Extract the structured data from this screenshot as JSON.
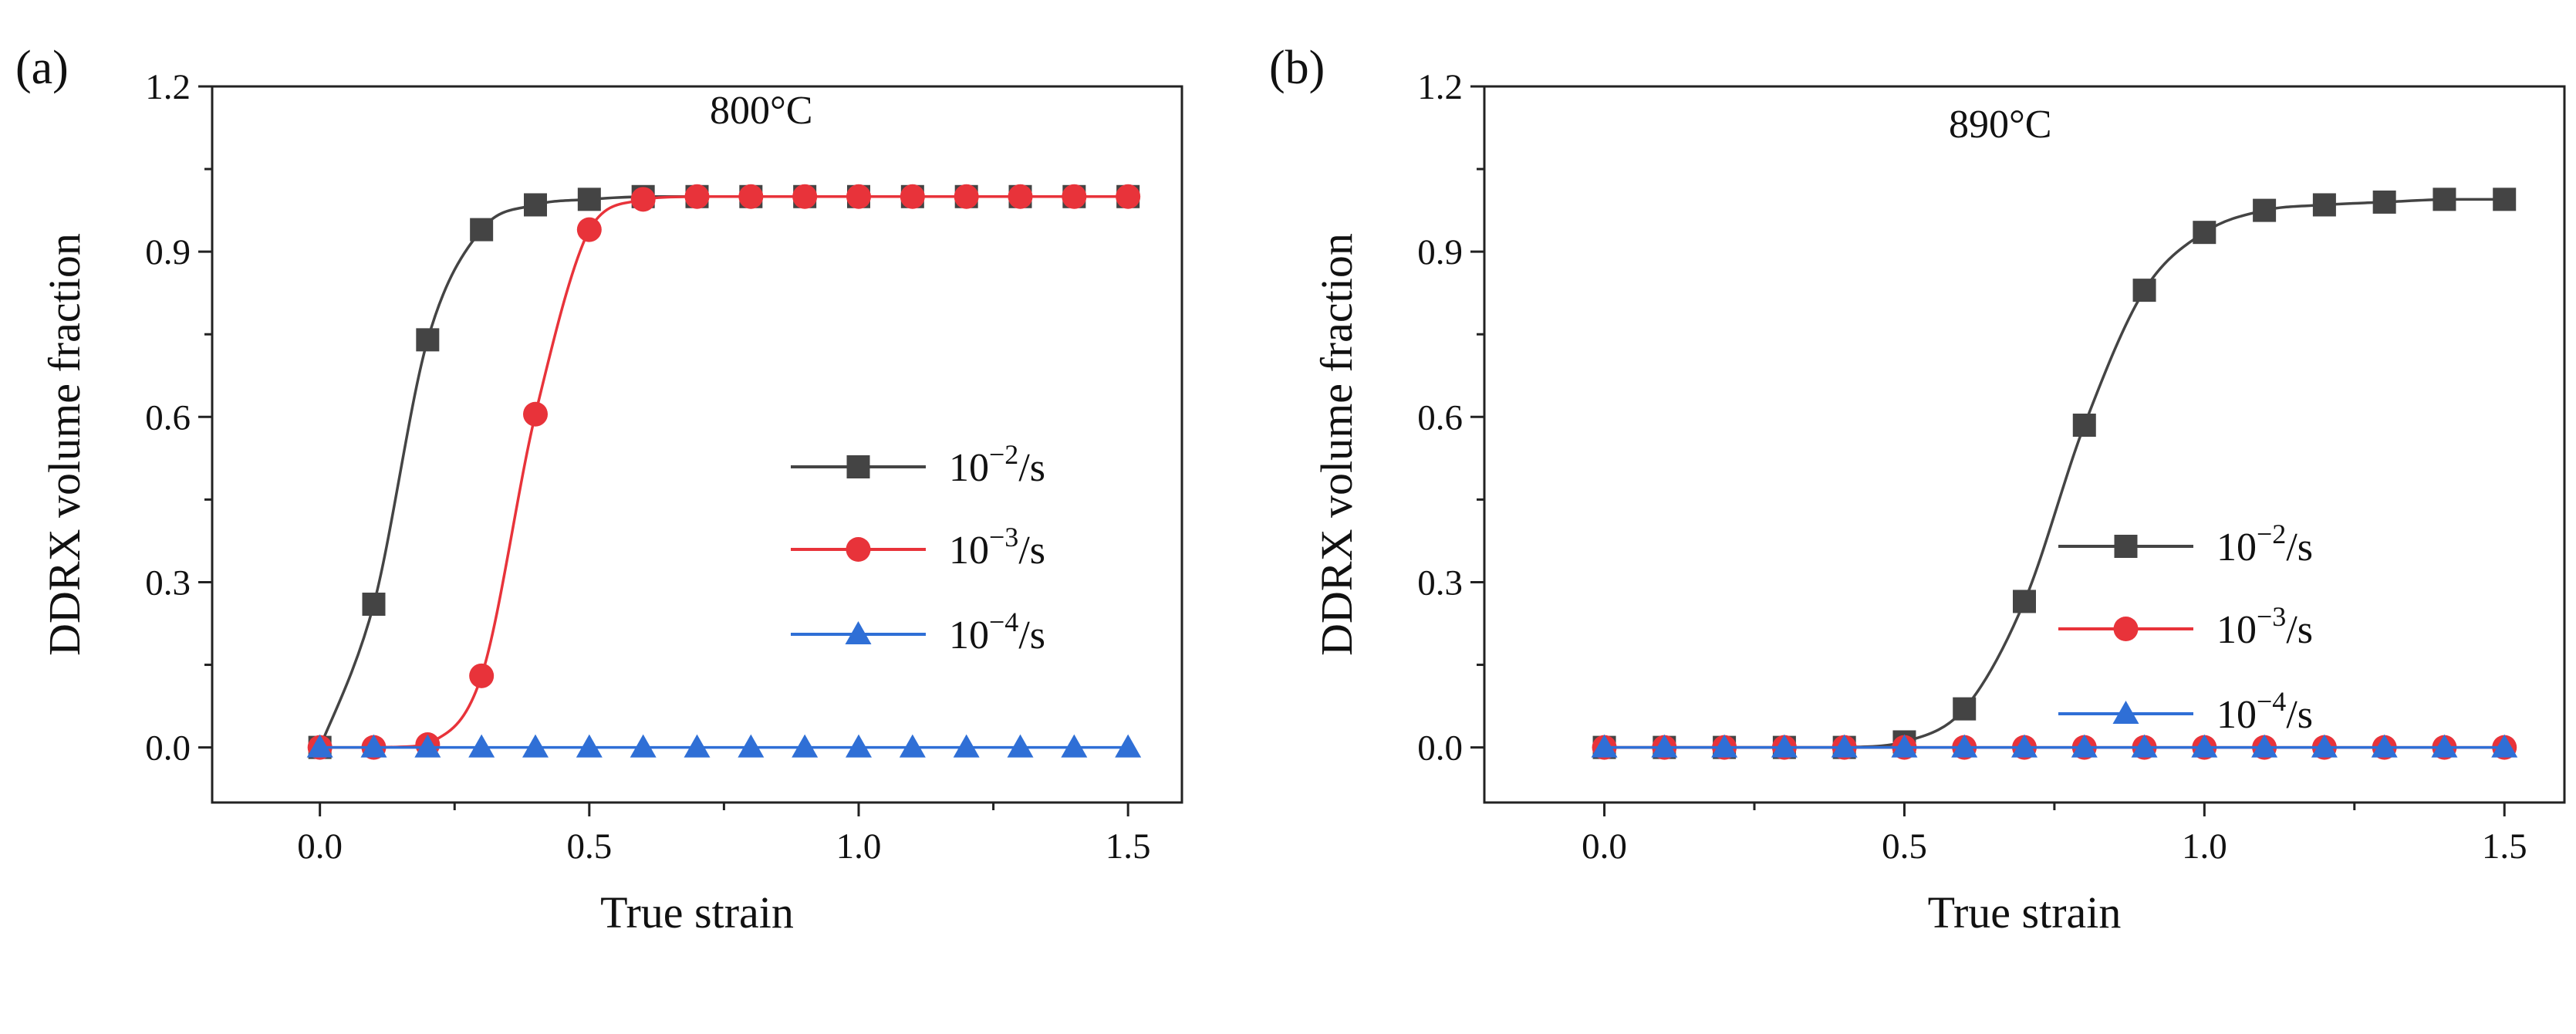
{
  "chart_data": [
    {
      "type": "line",
      "panel_label": "(a)",
      "annotation": "800°C",
      "xlabel": "True strain",
      "ylabel": "DDRX volume fraction",
      "xlim": [
        -0.2,
        1.6
      ],
      "ylim": [
        -0.1,
        1.2
      ],
      "xticks": [
        0.0,
        0.5,
        1.0,
        1.5
      ],
      "xtick_labels": [
        "0.0",
        "0.5",
        "1.0",
        "1.5"
      ],
      "yticks": [
        0.0,
        0.3,
        0.6,
        0.9,
        1.2
      ],
      "ytick_labels": [
        "0.0",
        "0.3",
        "0.6",
        "0.9",
        "1.2"
      ],
      "legend_position": "center-right",
      "series": [
        {
          "name": "10⁻²/s",
          "base": "10",
          "exp": "−2",
          "unit": "/s",
          "color": "#444444",
          "marker": "square",
          "x": [
            0.0,
            0.1,
            0.2,
            0.3,
            0.4,
            0.5,
            0.6,
            0.7,
            0.8,
            0.9,
            1.0,
            1.1,
            1.2,
            1.3,
            1.4,
            1.5
          ],
          "y": [
            0.0,
            0.26,
            0.74,
            0.94,
            0.985,
            0.995,
            1.0,
            1.0,
            1.0,
            1.0,
            1.0,
            1.0,
            1.0,
            1.0,
            1.0,
            1.0
          ]
        },
        {
          "name": "10⁻³/s",
          "base": "10",
          "exp": "−3",
          "unit": "/s",
          "color": "#e8333a",
          "marker": "circle",
          "x": [
            0.0,
            0.1,
            0.2,
            0.3,
            0.4,
            0.5,
            0.6,
            0.7,
            0.8,
            0.9,
            1.0,
            1.1,
            1.2,
            1.3,
            1.4,
            1.5
          ],
          "y": [
            0.0,
            0.0,
            0.005,
            0.13,
            0.605,
            0.94,
            0.995,
            1.0,
            1.0,
            1.0,
            1.0,
            1.0,
            1.0,
            1.0,
            1.0,
            1.0
          ]
        },
        {
          "name": "10⁻⁴/s",
          "base": "10",
          "exp": "−4",
          "unit": "/s",
          "color": "#2f6fd6",
          "marker": "triangle",
          "x": [
            0.0,
            0.1,
            0.2,
            0.3,
            0.4,
            0.5,
            0.6,
            0.7,
            0.8,
            0.9,
            1.0,
            1.1,
            1.2,
            1.3,
            1.4,
            1.5
          ],
          "y": [
            0.0,
            0.0,
            0.0,
            0.0,
            0.0,
            0.0,
            0.0,
            0.0,
            0.0,
            0.0,
            0.0,
            0.0,
            0.0,
            0.0,
            0.0,
            0.0
          ]
        }
      ]
    },
    {
      "type": "line",
      "panel_label": "(b)",
      "annotation": "890°C",
      "xlabel": "True strain",
      "ylabel": "DDRX volume fraction",
      "xlim": [
        -0.2,
        1.6
      ],
      "ylim": [
        -0.1,
        1.2
      ],
      "xticks": [
        0.0,
        0.5,
        1.0,
        1.5
      ],
      "xtick_labels": [
        "0.0",
        "0.5",
        "1.0",
        "1.5"
      ],
      "yticks": [
        0.0,
        0.3,
        0.6,
        0.9,
        1.2
      ],
      "ytick_labels": [
        "0.0",
        "0.3",
        "0.6",
        "0.9",
        "1.2"
      ],
      "legend_position": "lower-right",
      "series": [
        {
          "name": "10⁻²/s",
          "base": "10",
          "exp": "−2",
          "unit": "/s",
          "color": "#444444",
          "marker": "square",
          "x": [
            0.0,
            0.1,
            0.2,
            0.3,
            0.4,
            0.5,
            0.6,
            0.7,
            0.8,
            0.9,
            1.0,
            1.1,
            1.2,
            1.3,
            1.4,
            1.5
          ],
          "y": [
            0.0,
            0.0,
            0.0,
            0.0,
            0.0,
            0.01,
            0.07,
            0.265,
            0.585,
            0.83,
            0.935,
            0.975,
            0.985,
            0.99,
            0.995,
            0.995
          ]
        },
        {
          "name": "10⁻³/s",
          "base": "10",
          "exp": "−3",
          "unit": "/s",
          "color": "#e8333a",
          "marker": "circle",
          "x": [
            0.0,
            0.1,
            0.2,
            0.3,
            0.4,
            0.5,
            0.6,
            0.7,
            0.8,
            0.9,
            1.0,
            1.1,
            1.2,
            1.3,
            1.4,
            1.5
          ],
          "y": [
            0.0,
            0.0,
            0.0,
            0.0,
            0.0,
            0.0,
            0.0,
            0.0,
            0.0,
            0.0,
            0.0,
            0.0,
            0.0,
            0.0,
            0.0,
            0.0
          ]
        },
        {
          "name": "10⁻⁴/s",
          "base": "10",
          "exp": "−4",
          "unit": "/s",
          "color": "#2f6fd6",
          "marker": "triangle",
          "x": [
            0.0,
            0.1,
            0.2,
            0.3,
            0.4,
            0.5,
            0.6,
            0.7,
            0.8,
            0.9,
            1.0,
            1.1,
            1.2,
            1.3,
            1.4,
            1.5
          ],
          "y": [
            0.0,
            0.0,
            0.0,
            0.0,
            0.0,
            0.0,
            0.0,
            0.0,
            0.0,
            0.0,
            0.0,
            0.0,
            0.0,
            0.0,
            0.0,
            0.0
          ]
        }
      ]
    }
  ]
}
